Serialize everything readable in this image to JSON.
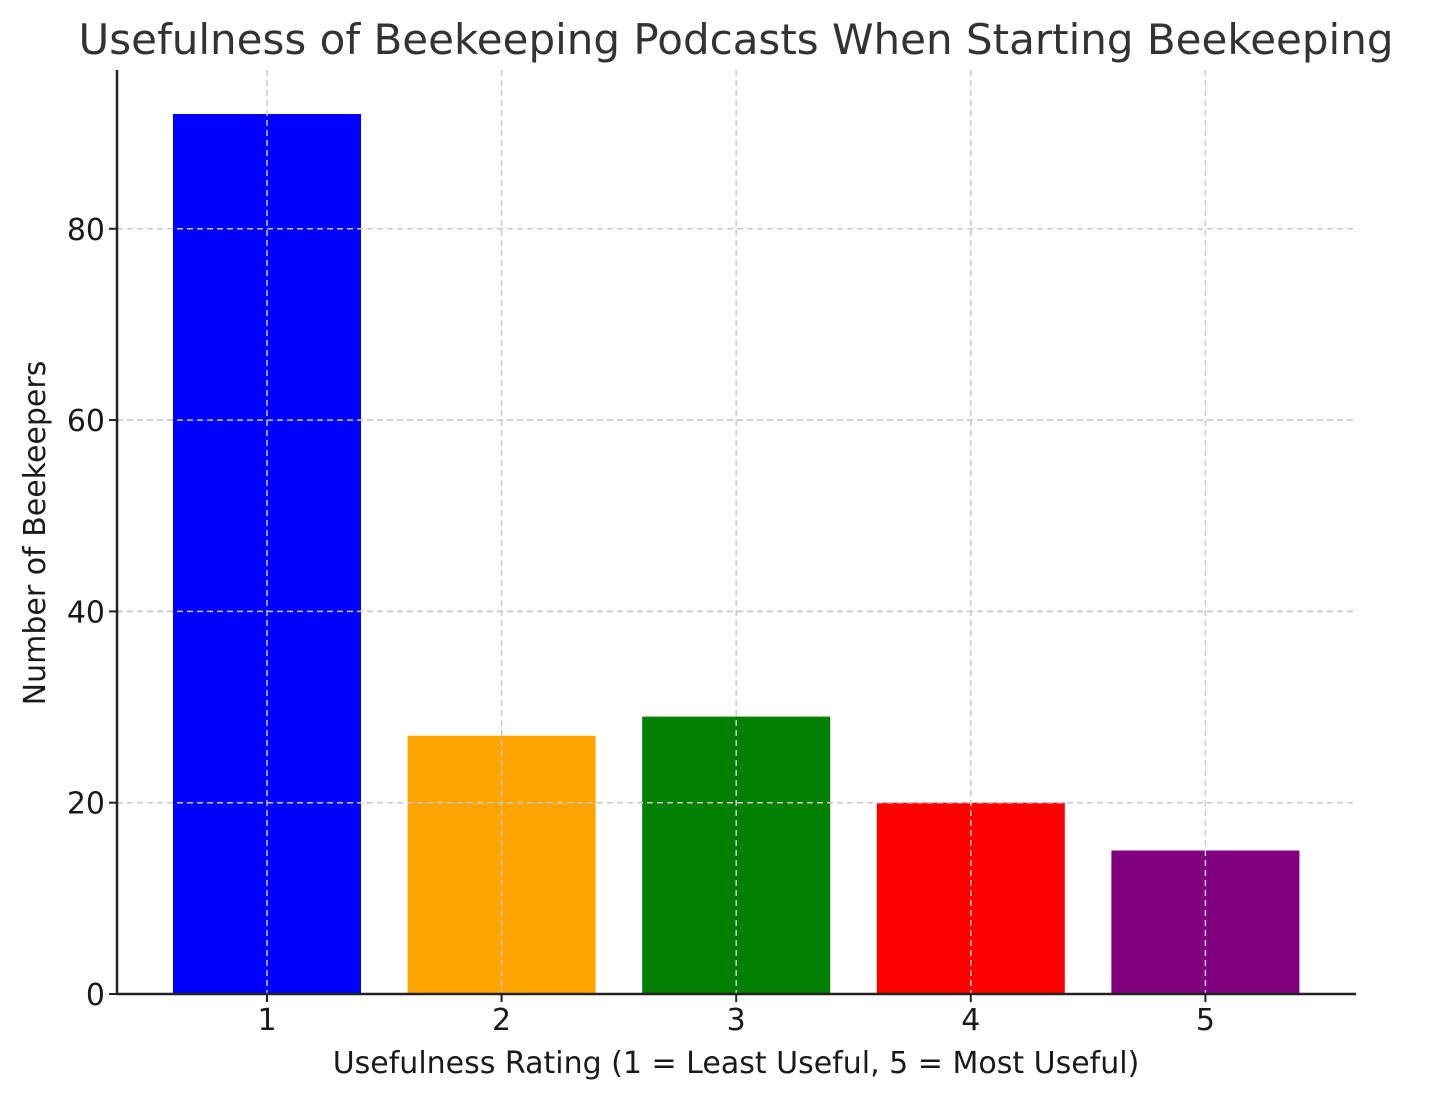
{
  "chart_data": {
    "type": "bar",
    "title": "Usefulness of Beekeeping Podcasts When Starting Beekeeping",
    "xlabel": "Usefulness Rating (1 = Least Useful, 5 = Most Useful)",
    "ylabel": "Number of Beekeepers",
    "categories": [
      "1",
      "2",
      "3",
      "4",
      "5"
    ],
    "values": [
      92,
      27,
      29,
      20,
      15
    ],
    "colors": [
      "#0000ff",
      "#ffa500",
      "#008000",
      "#ff0000",
      "#800080"
    ],
    "ylim": [
      0,
      96.6
    ],
    "yticks": [
      0,
      20,
      40,
      60,
      80
    ],
    "grid": true,
    "legend": "none"
  }
}
